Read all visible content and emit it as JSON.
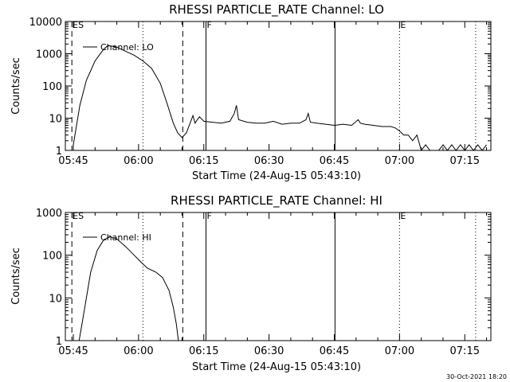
{
  "footer_date": "30-Oct-2021 18:20",
  "chart_data": [
    {
      "type": "line",
      "title": "RHESSI PARTICLE_RATE Channel: LO",
      "xlabel": "Start Time (24-Aug-15 05:43:10)",
      "ylabel": "Counts/sec",
      "yscale": "log",
      "xlim": [
        "05:43:10",
        "07:21:00"
      ],
      "ylim": [
        1,
        10000
      ],
      "xticks": [
        "05:45",
        "06:00",
        "06:15",
        "06:30",
        "06:45",
        "07:00",
        "07:15"
      ],
      "yticks": [
        "1",
        "10",
        "100",
        "1000",
        "10000"
      ],
      "legend": "Channel: LO",
      "markers": [
        {
          "time": "05:44:40",
          "style": "dashed",
          "label": "ES"
        },
        {
          "time": "06:01:00",
          "style": "dotted",
          "label": ""
        },
        {
          "time": "06:10:10",
          "style": "dashed",
          "label": ""
        },
        {
          "time": "06:15:30",
          "style": "solid",
          "label": "F"
        },
        {
          "time": "06:45:10",
          "style": "solid",
          "label": ""
        },
        {
          "time": "07:00:00",
          "style": "dotted",
          "label": "E"
        },
        {
          "time": "07:17:30",
          "style": "dotted",
          "label": ""
        }
      ],
      "series": [
        {
          "name": "Channel: LO",
          "x": [
            "05:45:00",
            "05:46:30",
            "05:48:00",
            "05:50:00",
            "05:52:00",
            "05:53:00",
            "05:55:00",
            "05:57:00",
            "05:59:00",
            "06:01:00",
            "06:03:00",
            "06:05:00",
            "06:06:30",
            "06:08:00",
            "06:09:00",
            "06:10:00",
            "06:11:00",
            "06:12:00",
            "06:12:30",
            "06:13:00",
            "06:13:30",
            "06:14:00",
            "06:15:00",
            "06:17:00",
            "06:19:00",
            "06:21:00",
            "06:22:00",
            "06:22:30",
            "06:23:00",
            "06:25:00",
            "06:27:00",
            "06:29:00",
            "06:31:00",
            "06:33:00",
            "06:35:00",
            "06:37:00",
            "06:38:30",
            "06:39:00",
            "06:39:30",
            "06:41:00",
            "06:43:00",
            "06:45:00",
            "06:47:00",
            "06:49:00",
            "06:50:30",
            "06:51:00",
            "06:52:00",
            "06:54:00",
            "06:56:00",
            "06:58:00",
            "06:59:00",
            "07:00:00",
            "07:01:00",
            "07:02:00",
            "07:03:00",
            "07:04:00",
            "07:05:00",
            "07:06:00",
            "07:07:00",
            "07:08:00",
            "07:09:00",
            "07:10:00",
            "07:11:00",
            "07:12:00",
            "07:13:00",
            "07:14:00",
            "07:15:00",
            "07:16:00",
            "07:17:00",
            "07:18:00",
            "07:19:00",
            "07:20:00"
          ],
          "y": [
            1.5,
            25,
            150,
            600,
            1400,
            1800,
            1600,
            1200,
            900,
            600,
            350,
            120,
            30,
            7,
            3.5,
            2.5,
            3.5,
            8,
            12,
            7,
            9,
            11,
            8,
            7.5,
            7,
            8,
            14,
            25,
            9,
            7.5,
            7,
            7,
            8,
            6.5,
            7,
            7,
            9,
            14,
            7.5,
            7,
            6.5,
            6,
            6.5,
            6,
            9,
            7,
            6.5,
            6,
            5.5,
            5.5,
            5,
            4,
            3,
            3,
            2,
            3,
            1,
            1.5,
            1,
            1,
            1,
            1.5,
            1,
            1.5,
            1,
            1.5,
            1,
            1.5,
            1,
            1.5,
            1,
            1.5
          ]
        }
      ]
    },
    {
      "type": "line",
      "title": "RHESSI PARTICLE_RATE Channel: HI",
      "xlabel": "Start Time (24-Aug-15 05:43:10)",
      "ylabel": "Counts/sec",
      "yscale": "log",
      "xlim": [
        "05:43:10",
        "07:21:00"
      ],
      "ylim": [
        1,
        1000
      ],
      "xticks": [
        "05:45",
        "06:00",
        "06:15",
        "06:30",
        "06:45",
        "07:00",
        "07:15"
      ],
      "yticks": [
        "1",
        "10",
        "100",
        "1000"
      ],
      "legend": "Channel: HI",
      "markers": [
        {
          "time": "05:44:40",
          "style": "dashed",
          "label": "ES"
        },
        {
          "time": "06:01:00",
          "style": "dotted",
          "label": ""
        },
        {
          "time": "06:10:10",
          "style": "dashed",
          "label": ""
        },
        {
          "time": "06:15:30",
          "style": "solid",
          "label": "F"
        },
        {
          "time": "06:45:10",
          "style": "solid",
          "label": ""
        },
        {
          "time": "07:00:00",
          "style": "dotted",
          "label": "E"
        },
        {
          "time": "07:17:30",
          "style": "dotted",
          "label": ""
        }
      ],
      "series": [
        {
          "name": "Channel: HI",
          "x": [
            "05:46:20",
            "05:47:30",
            "05:49:00",
            "05:50:30",
            "05:52:00",
            "05:53:30",
            "05:55:00",
            "05:57:00",
            "05:59:00",
            "06:00:30",
            "06:02:00",
            "06:04:00",
            "06:05:30",
            "06:07:00",
            "06:08:00",
            "06:08:40",
            "06:09:10"
          ],
          "y": [
            1,
            5,
            40,
            130,
            230,
            270,
            240,
            160,
            100,
            70,
            50,
            40,
            30,
            15,
            6,
            2.5,
            1
          ]
        }
      ]
    }
  ]
}
